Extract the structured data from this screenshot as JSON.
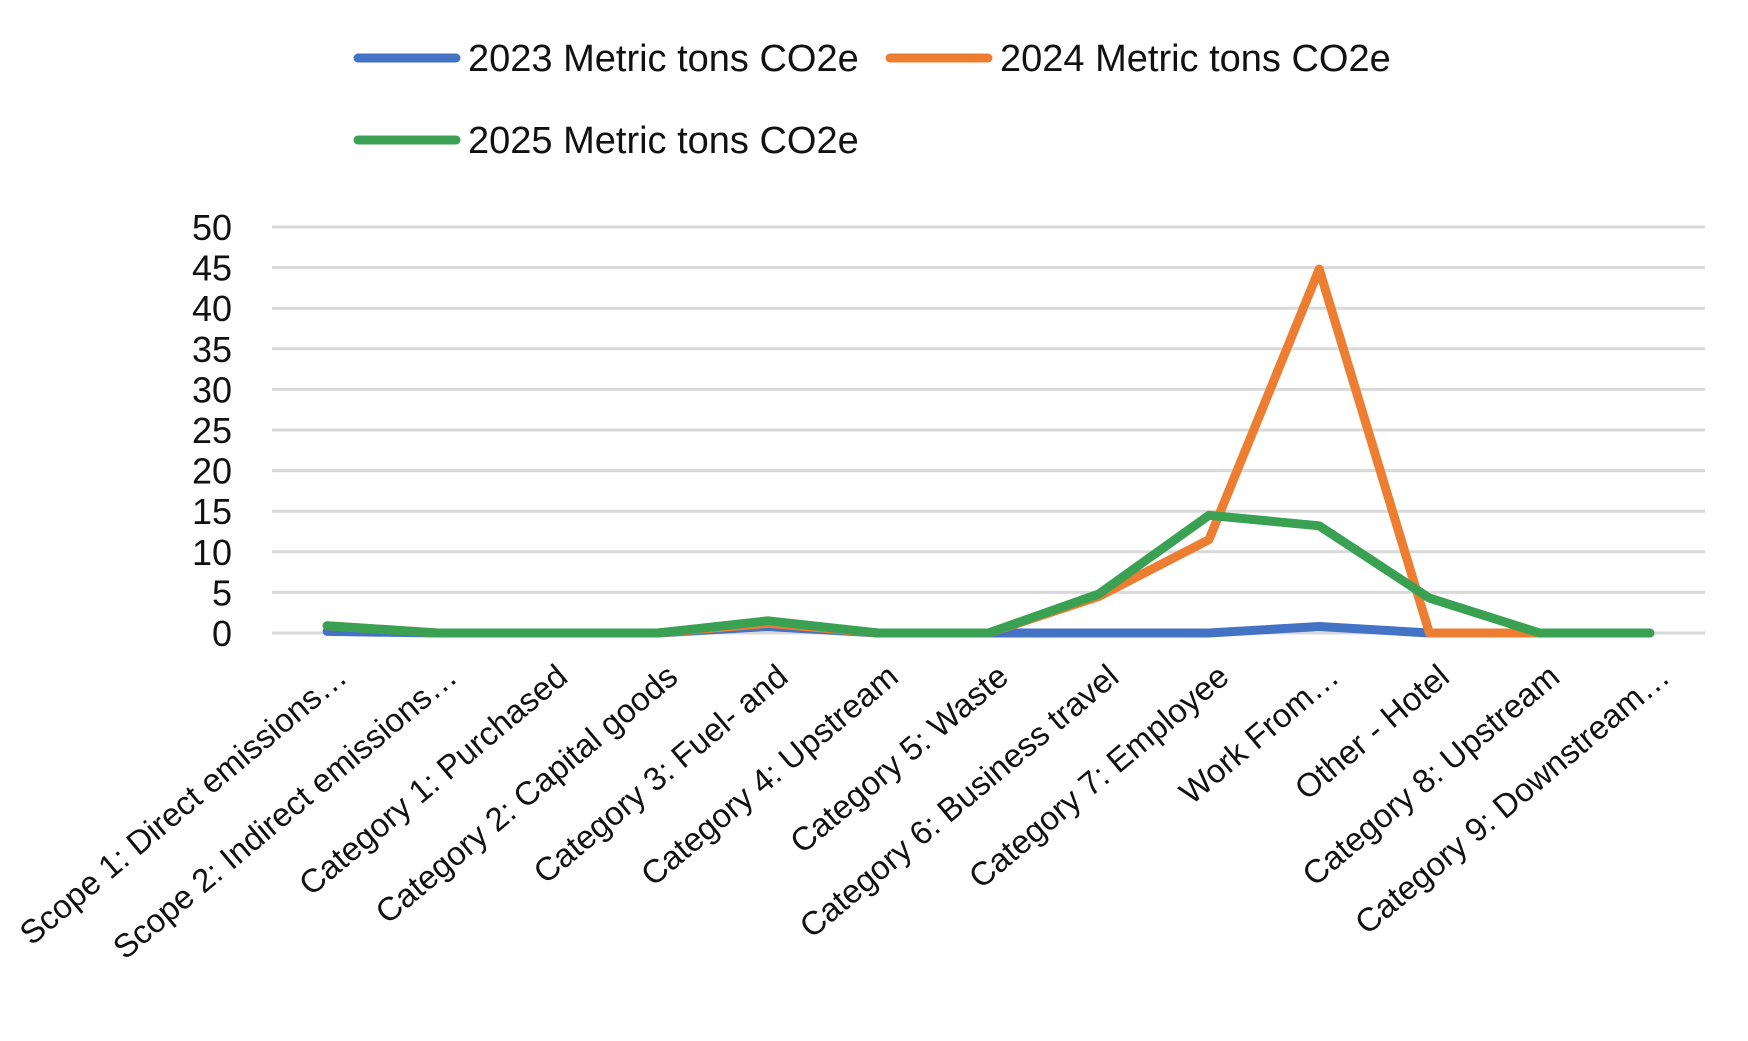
{
  "chart_data": {
    "type": "line",
    "categories": [
      "Scope 1: Direct emissions…",
      "Scope 2: Indirect emissions…",
      "Category 1: Purchased",
      "Category 2: Capital goods",
      "Category 3: Fuel- and",
      "Category 4: Upstream",
      "Category 5: Waste",
      "Category 6: Business travel",
      "Category 7: Employee",
      "Work From…",
      "Other - Hotel",
      "Category 8: Upstream",
      "Category 9: Downstream…"
    ],
    "series": [
      {
        "name": "2023 Metric tons CO2e",
        "color": "#4472C4",
        "values": [
          0.2,
          0,
          0,
          0,
          0.8,
          0,
          0,
          0,
          0,
          0.8,
          0,
          0,
          0
        ]
      },
      {
        "name": "2024 Metric tons CO2e",
        "color": "#ED7D31",
        "values": [
          0.9,
          0,
          0,
          0,
          1.2,
          0,
          0,
          4.5,
          11.5,
          44.8,
          0,
          0,
          0
        ]
      },
      {
        "name": "2025 Metric tons CO2e",
        "color": "#3AA052",
        "values": [
          0.9,
          0,
          0,
          0,
          1.5,
          0,
          0,
          4.8,
          14.5,
          13.2,
          4.3,
          0,
          0
        ]
      }
    ],
    "yticks": [
      "0",
      "5",
      "10",
      "15",
      "20",
      "25",
      "30",
      "35",
      "40",
      "45",
      "50"
    ],
    "ylim": [
      0,
      50
    ],
    "grid": true,
    "legend_position": "top",
    "title": "",
    "xlabel": "",
    "ylabel": ""
  }
}
